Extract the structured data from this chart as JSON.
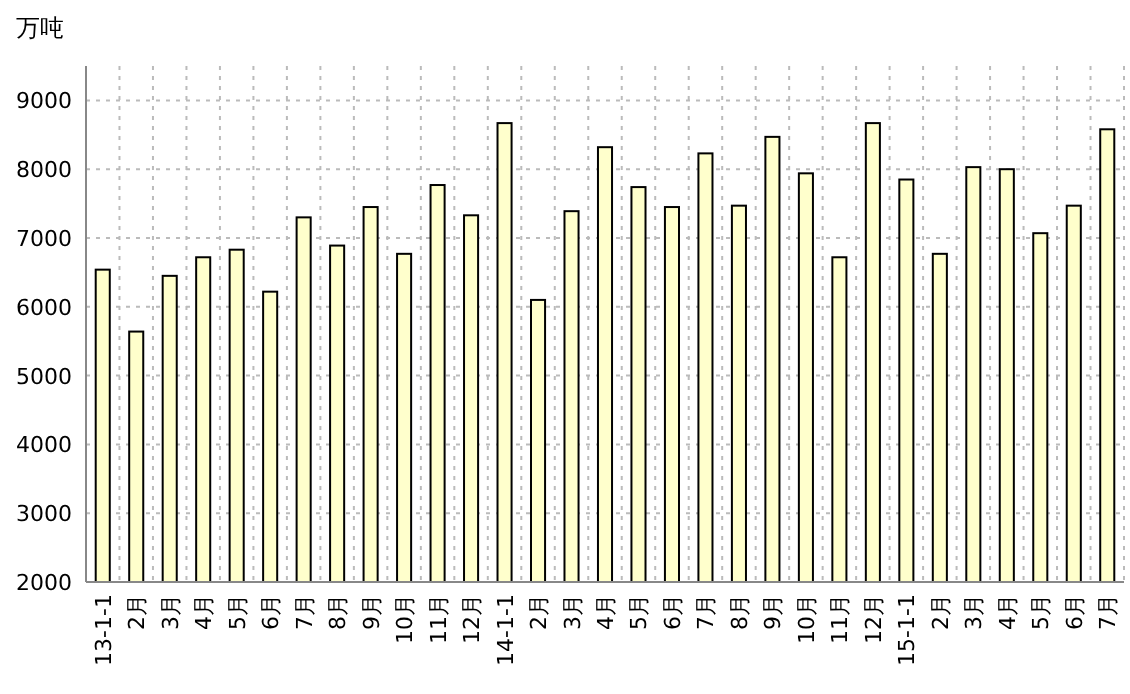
{
  "chart_data": {
    "type": "bar",
    "ylabel": "万吨",
    "categories": [
      "13-1-1",
      "2月",
      "3月",
      "4月",
      "5月",
      "6月",
      "7月",
      "8月",
      "9月",
      "10月",
      "11月",
      "12月",
      "14-1-1",
      "2月",
      "3月",
      "4月",
      "5月",
      "6月",
      "7月",
      "8月",
      "9月",
      "10月",
      "11月",
      "12月",
      "15-1-1",
      "2月",
      "3月",
      "4月",
      "5月",
      "6月",
      "7月"
    ],
    "values": [
      6540,
      5640,
      6450,
      6720,
      6830,
      6220,
      7300,
      6890,
      7450,
      6770,
      7770,
      7330,
      8670,
      6100,
      7390,
      8320,
      7740,
      7450,
      8230,
      7470,
      8470,
      7940,
      6720,
      8670,
      7850,
      6770,
      8030,
      8000,
      7070,
      7470,
      8580
    ],
    "color": "#ffffcc",
    "ylim": [
      2000,
      9500
    ],
    "yticks": [
      2000,
      3000,
      4000,
      5000,
      6000,
      7000,
      8000,
      9000
    ],
    "grid": true
  }
}
